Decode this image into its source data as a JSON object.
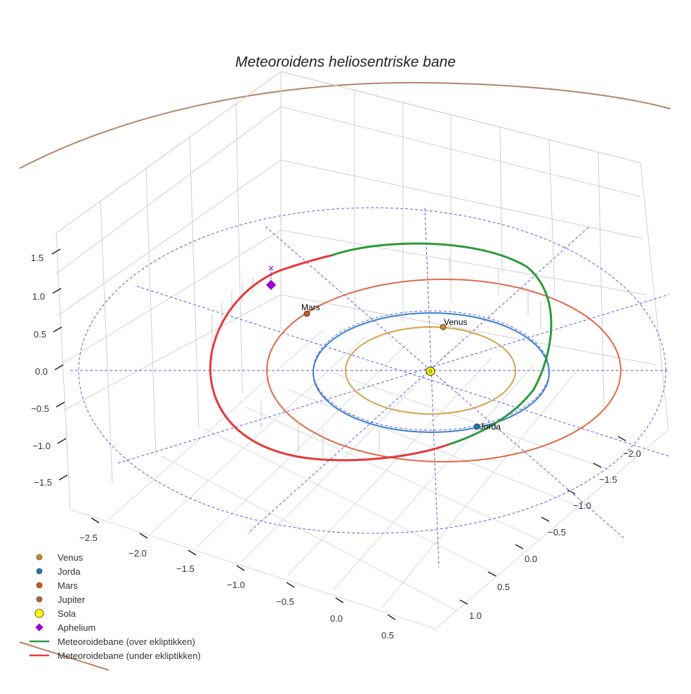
{
  "chart_data": {
    "type": "3d-line",
    "title": "Meteoroidens heliosentriske bane",
    "z_ticks": [
      "1.5",
      "1.0",
      "0.5",
      "0.0",
      "−0.5",
      "−1.0",
      "−1.5"
    ],
    "x_ticks": [
      "−2.5",
      "−2.0",
      "−1.5",
      "−1.0",
      "−0.5",
      "0.0",
      "0.5"
    ],
    "y_ticks": [
      "−2.0",
      "−1.5",
      "−1.0",
      "−0.5",
      "0.0",
      "0.5",
      "1.0"
    ],
    "planets": [
      {
        "name": "Venus",
        "orbit_radius_au": 0.72,
        "color": "#d18b1c",
        "orbit_color": "#d4a24a"
      },
      {
        "name": "Jorda",
        "orbit_radius_au": 1.0,
        "color": "#1f77b4",
        "orbit_color": "#3a7fd0"
      },
      {
        "name": "Mars",
        "orbit_radius_au": 1.52,
        "color": "#d2541c",
        "orbit_color": "#e06a4a"
      },
      {
        "name": "Jupiter",
        "orbit_radius_au": 5.2,
        "color": "#b5643a",
        "orbit_color": "#b5836a"
      }
    ],
    "sun": {
      "name": "Sola",
      "color": "#ffff00"
    },
    "aphelium": {
      "name": "Aphelium",
      "color": "#9400d3"
    },
    "series": [
      {
        "name": "Meteoroidebane (over ekliptikken)",
        "color": "#2a9a3a"
      },
      {
        "name": "Meteoroidebane (under ekliptikken)",
        "color": "#e8383a"
      }
    ],
    "legend": {
      "position": "bottom-left",
      "entries": [
        "Venus",
        "Jorda",
        "Mars",
        "Jupiter",
        "Sola",
        "Aphelium",
        "Meteoroidebane (over ekliptikken)",
        "Meteoroidebane (under ekliptikken)"
      ]
    }
  }
}
